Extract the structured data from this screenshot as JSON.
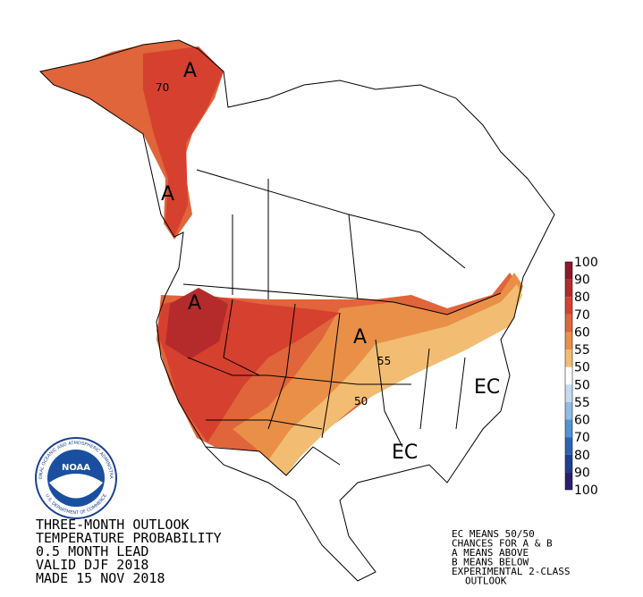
{
  "map_labels": [
    "A",
    "70",
    "A",
    "A",
    "A",
    "55",
    "50",
    "EC",
    "EC"
  ],
  "legend": {
    "labels": [
      "100",
      "90",
      "80",
      "70",
      "60",
      "55",
      "50",
      "50",
      "55",
      "60",
      "70",
      "80",
      "90",
      "100"
    ],
    "colors": [
      "#8c1a2a",
      "#b52b2b",
      "#d6402f",
      "#e0653a",
      "#ea8f48",
      "#f2bd72",
      "#ffffff",
      "#c6dcf0",
      "#8fbde6",
      "#4f94d6",
      "#2b64b3",
      "#1f3f8f",
      "#2a1f6e"
    ]
  },
  "logo": {
    "name": "NOAA",
    "ring_top": "NATIONAL OCEANIC AND ATMOSPHERIC ADMINISTRATION",
    "ring_bottom": "U.S. DEPARTMENT OF COMMERCE"
  },
  "title": [
    "THREE-MONTH OUTLOOK",
    "TEMPERATURE PROBABILITY",
    "0.5 MONTH LEAD",
    "VALID DJF 2018",
    "MADE 15 NOV 2018"
  ],
  "notes": [
    "EC MEANS 50/50",
    "CHANCES FOR A & B",
    "A MEANS ABOVE",
    "B MEANS BELOW",
    "EXPERIMENTAL 2-CLASS",
    "OUTLOOK"
  ]
}
